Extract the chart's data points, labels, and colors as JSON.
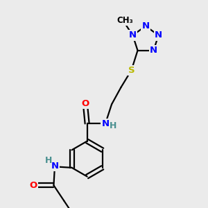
{
  "bg_color": "#ebebeb",
  "atom_colors": {
    "C": "#000000",
    "N": "#0000ff",
    "O": "#ff0000",
    "S": "#b8b800",
    "H": "#4a9090"
  },
  "bond_color": "#000000",
  "bond_width": 1.6,
  "font_size_atom": 9.5
}
